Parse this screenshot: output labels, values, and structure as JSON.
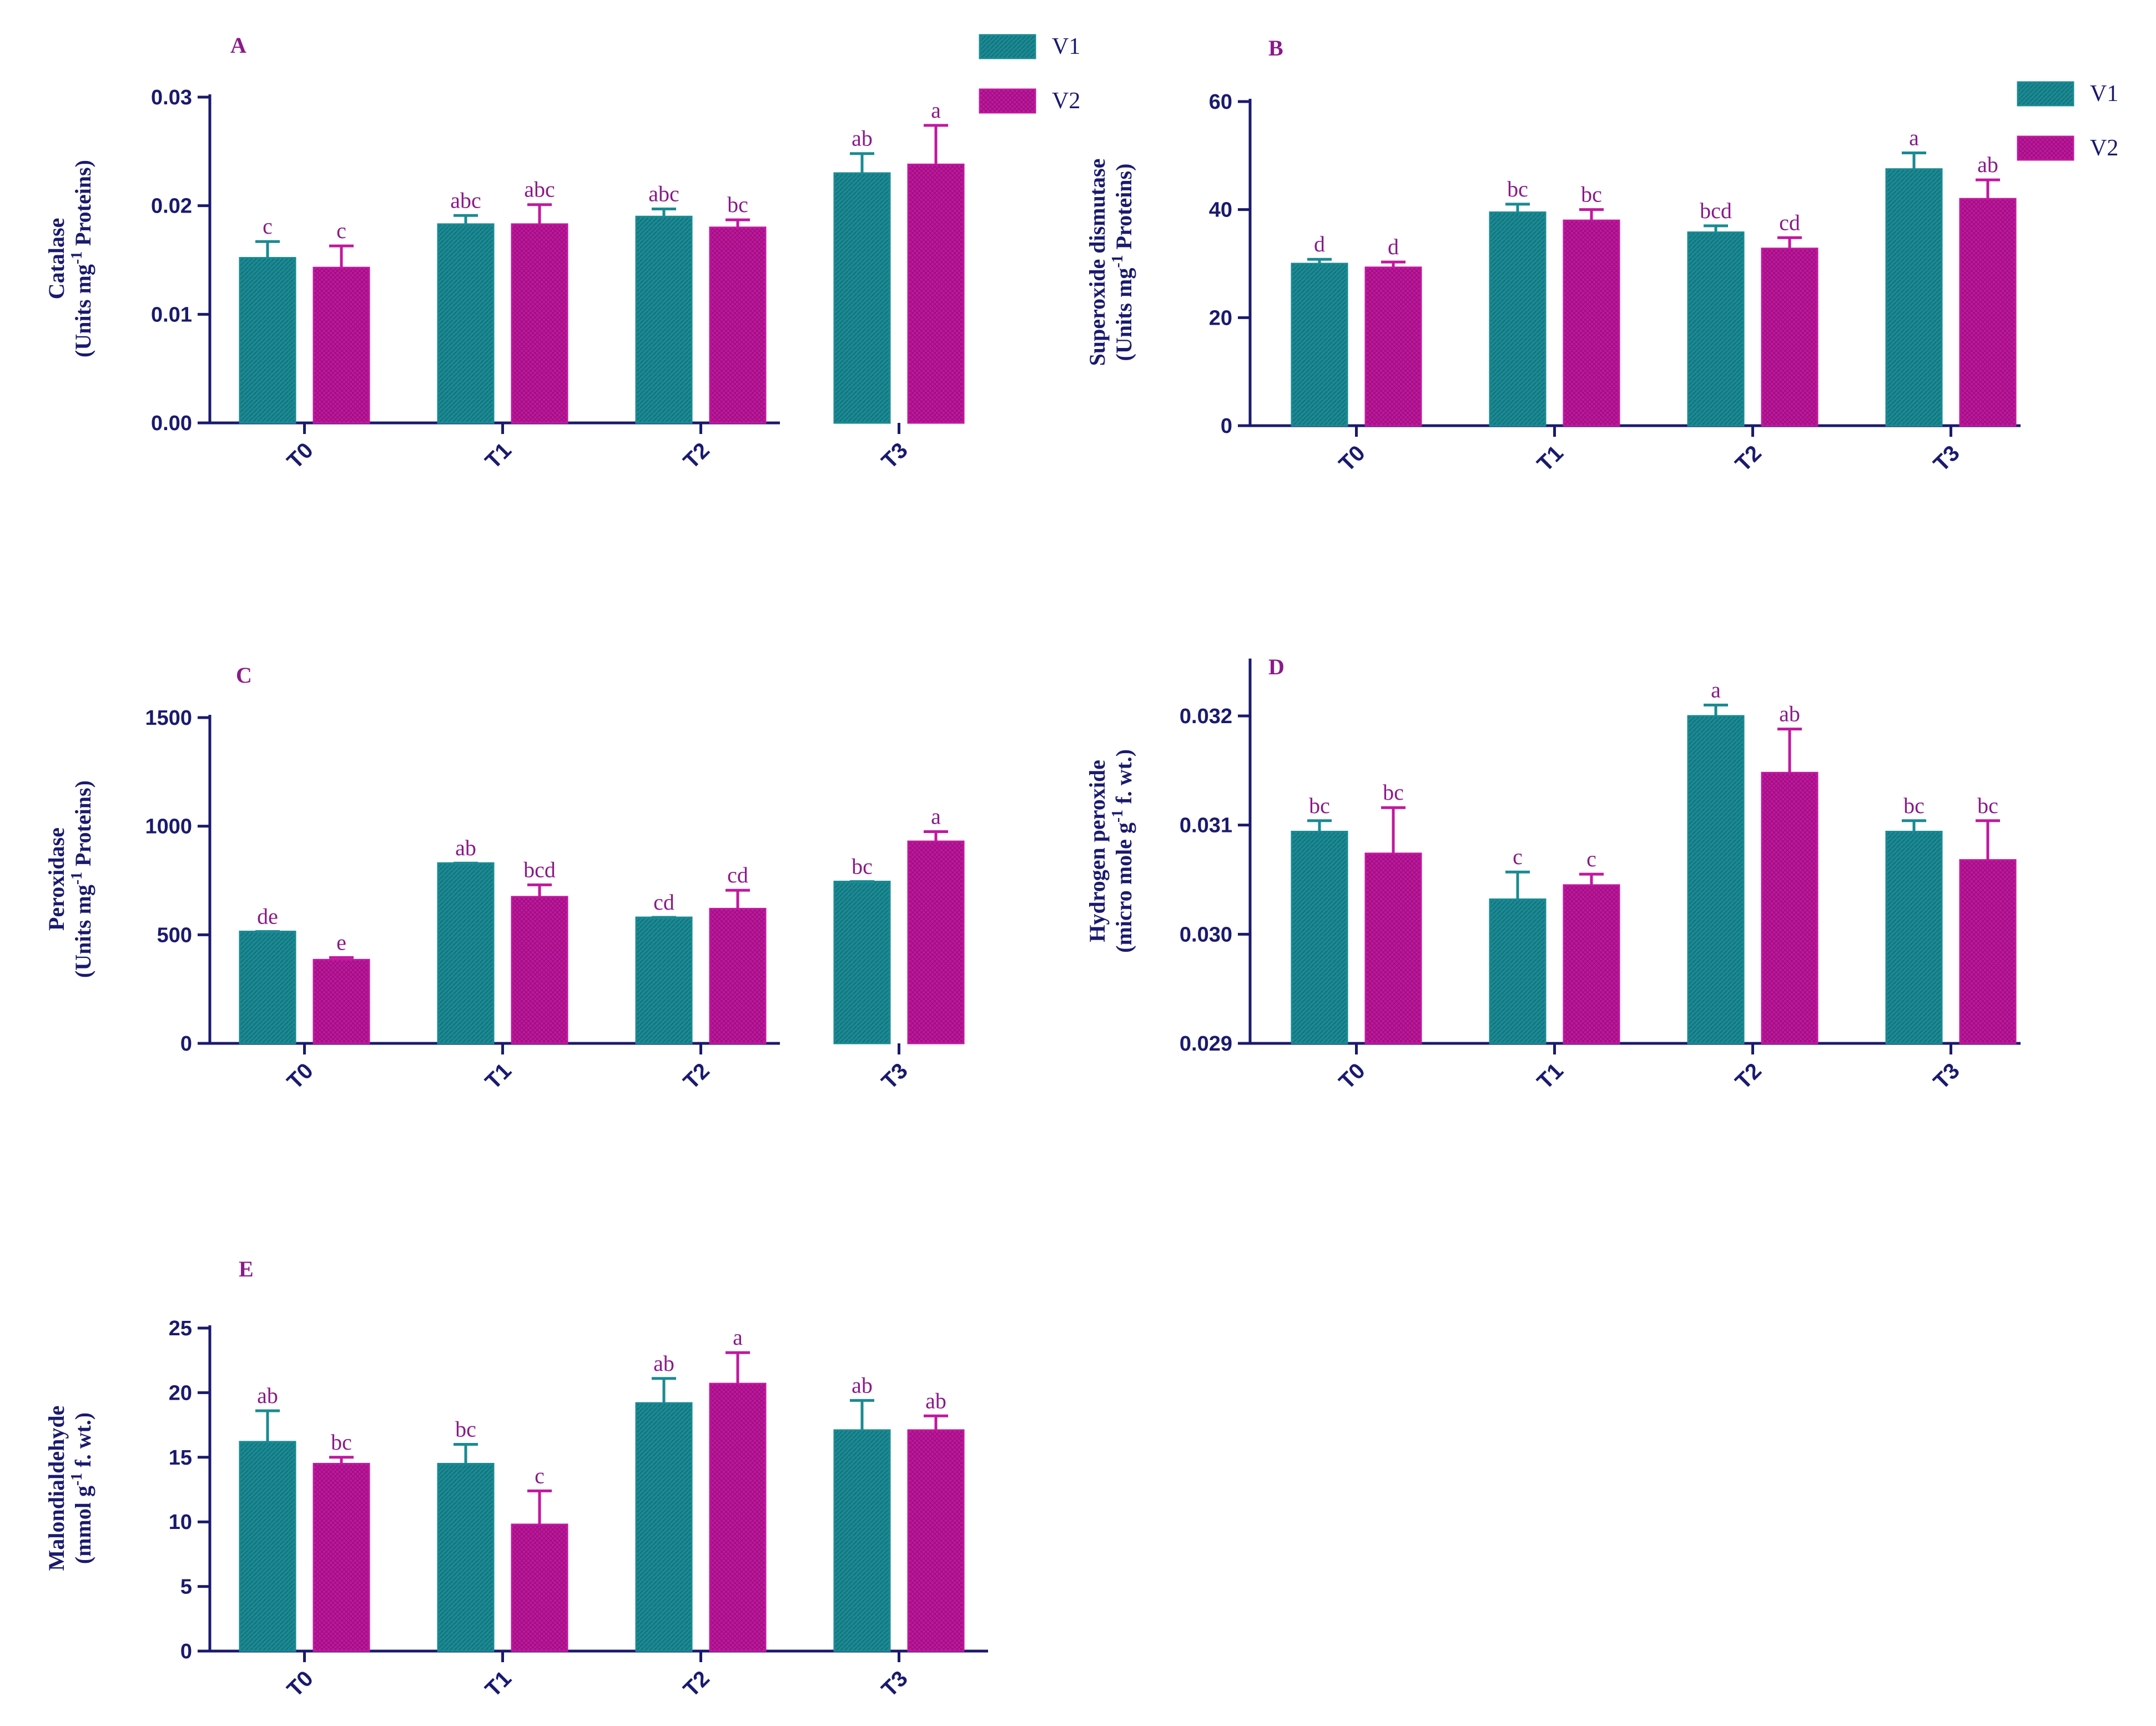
{
  "chart_data": [
    {
      "id": "A",
      "panel_label": "A",
      "type": "bar",
      "ylabel": [
        "Catalase",
        "(Units mg-1 Proteins)"
      ],
      "ylim": [
        0,
        0.03
      ],
      "yticks": [
        0,
        0.01,
        0.02,
        0.03
      ],
      "ytick_labels": [
        "0.00",
        "0.01",
        "0.02",
        "0.03"
      ],
      "categories": [
        "T0",
        "T1",
        "T2",
        "T3"
      ],
      "series": [
        {
          "name": "V1",
          "values": [
            0.0152,
            0.0183,
            0.019,
            0.023
          ],
          "errors": [
            0.0015,
            0.0008,
            0.0007,
            0.0018
          ],
          "letters": [
            "c",
            "abc",
            "abc",
            "ab"
          ]
        },
        {
          "name": "V2",
          "values": [
            0.0143,
            0.0183,
            0.018,
            0.0238
          ],
          "errors": [
            0.002,
            0.0018,
            0.0007,
            0.0036
          ],
          "letters": [
            "c",
            "abc",
            "bc",
            "a"
          ]
        }
      ]
    },
    {
      "id": "B",
      "panel_label": "B",
      "type": "bar",
      "ylabel": [
        "Superoxide dismutase",
        "(Units mg-1 Proteins)"
      ],
      "ylim": [
        0,
        60
      ],
      "yticks": [
        0,
        20,
        40,
        60
      ],
      "ytick_labels": [
        "0",
        "20",
        "40",
        "60"
      ],
      "categories": [
        "T0",
        "T1",
        "T2",
        "T3"
      ],
      "series": [
        {
          "name": "V1",
          "values": [
            30,
            39.5,
            35.8,
            47.5
          ],
          "errors": [
            0.8,
            1.5,
            1.2,
            3
          ],
          "letters": [
            "d",
            "bc",
            "bcd",
            "a"
          ]
        },
        {
          "name": "V2",
          "values": [
            29.3,
            38,
            32.8,
            42
          ],
          "errors": [
            1,
            2,
            2,
            3.5
          ],
          "letters": [
            "d",
            "bc",
            "cd",
            "ab"
          ]
        }
      ]
    },
    {
      "id": "C",
      "panel_label": "C",
      "type": "bar",
      "ylabel": [
        "Peroxidase",
        "(Units mg-1 Proteins)"
      ],
      "ylim": [
        0,
        1500
      ],
      "yticks": [
        0,
        500,
        1000,
        1500
      ],
      "ytick_labels": [
        "0",
        "500",
        "1000",
        "1500"
      ],
      "categories": [
        "T0",
        "T1",
        "T2",
        "T3"
      ],
      "series": [
        {
          "name": "V1",
          "values": [
            515,
            830,
            580,
            745
          ],
          "errors": [
            0,
            0,
            0,
            0
          ],
          "letters": [
            "de",
            "ab",
            "cd",
            "bc"
          ]
        },
        {
          "name": "V2",
          "values": [
            385,
            675,
            620,
            930
          ],
          "errors": [
            10,
            55,
            85,
            45
          ],
          "letters": [
            "e",
            "bcd",
            "cd",
            "a"
          ]
        }
      ]
    },
    {
      "id": "D",
      "panel_label": "D",
      "type": "bar",
      "ylabel": [
        "Hydrogen peroxide",
        "(micro mole g-1 f. wt.)"
      ],
      "ylim": [
        0.029,
        0.0325
      ],
      "yticks": [
        0.029,
        0.03,
        0.031,
        0.032
      ],
      "ytick_labels": [
        "0.029",
        "0.030",
        "0.031",
        "0.032"
      ],
      "categories": [
        "T0",
        "T1",
        "T2",
        "T3"
      ],
      "series": [
        {
          "name": "V1",
          "values": [
            0.03094,
            0.03032,
            0.032,
            0.03094
          ],
          "errors": [
            0.0001,
            0.00025,
            0.0001,
            0.0001
          ],
          "letters": [
            "bc",
            "c",
            "a",
            "bc"
          ]
        },
        {
          "name": "V2",
          "values": [
            0.03074,
            0.03045,
            0.03148,
            0.03068
          ],
          "errors": [
            0.00042,
            0.0001,
            0.0004,
            0.00036
          ],
          "letters": [
            "bc",
            "c",
            "ab",
            "bc"
          ]
        }
      ]
    },
    {
      "id": "E",
      "panel_label": "E",
      "type": "bar",
      "ylabel": [
        "Malondialdehyde",
        "(mmol g-1 f. wt.)"
      ],
      "ylim": [
        0,
        25
      ],
      "yticks": [
        0,
        5,
        10,
        15,
        20,
        25
      ],
      "ytick_labels": [
        "0",
        "5",
        "10",
        "15",
        "20",
        "25"
      ],
      "categories": [
        "T0",
        "T1",
        "T2",
        "T3"
      ],
      "series": [
        {
          "name": "V1",
          "values": [
            16.2,
            14.5,
            19.2,
            17.1
          ],
          "errors": [
            2.4,
            1.5,
            1.9,
            2.3
          ],
          "letters": [
            "ab",
            "bc",
            "ab",
            "ab"
          ]
        },
        {
          "name": "V2",
          "values": [
            14.5,
            9.8,
            20.7,
            17.1
          ],
          "errors": [
            0.5,
            2.6,
            2.4,
            1.1
          ],
          "letters": [
            "bc",
            "c",
            "a",
            "ab"
          ]
        }
      ]
    }
  ],
  "legends": [
    {
      "id": "legend-A",
      "items": [
        "V1",
        "V2"
      ]
    },
    {
      "id": "legend-B",
      "items": [
        "V1",
        "V2"
      ]
    }
  ],
  "colors": {
    "V1": "#1a8a93",
    "V2": "#c1189e",
    "axis": "#1a1a6e",
    "letters": "#8b1a89"
  }
}
